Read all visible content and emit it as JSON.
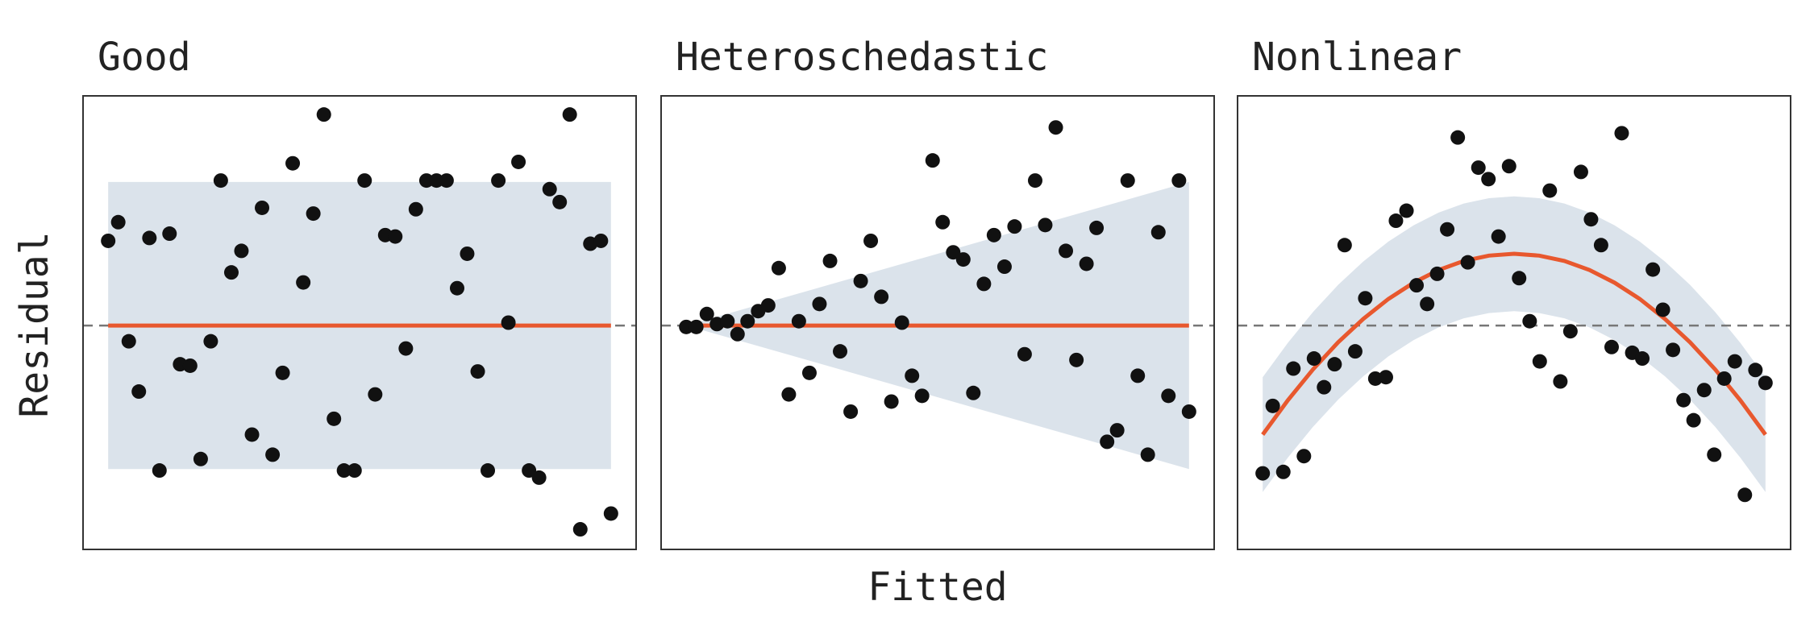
{
  "xlabel": "Fitted",
  "ylabel": "Residual",
  "chart_data": [
    {
      "type": "scatter",
      "title": "Good",
      "color": "#111111",
      "fit_color": "#e8582e",
      "band_color": "#dbe3eb",
      "xlim": [
        -0.05,
        1.05
      ],
      "ylim": [
        -1.56,
        1.6
      ],
      "hline": 0,
      "x": [
        0,
        0.02,
        0.041,
        0.061,
        0.082,
        0.102,
        0.122,
        0.143,
        0.163,
        0.184,
        0.204,
        0.224,
        0.245,
        0.265,
        0.286,
        0.306,
        0.327,
        0.347,
        0.367,
        0.388,
        0.408,
        0.429,
        0.449,
        0.469,
        0.49,
        0.51,
        0.531,
        0.551,
        0.571,
        0.592,
        0.612,
        0.633,
        0.653,
        0.673,
        0.694,
        0.714,
        0.735,
        0.755,
        0.776,
        0.796,
        0.816,
        0.837,
        0.857,
        0.878,
        0.898,
        0.918,
        0.939,
        0.959,
        0.98,
        1
      ],
      "values": [
        0.59,
        0.72,
        -0.11,
        -0.46,
        0.61,
        -1.01,
        0.64,
        -0.27,
        -0.28,
        -0.93,
        -0.11,
        1.01,
        0.37,
        0.52,
        -0.76,
        0.82,
        -0.9,
        -0.33,
        1.13,
        0.3,
        0.78,
        1.47,
        -0.65,
        -1.01,
        -1.01,
        1.01,
        -0.48,
        0.63,
        0.62,
        -0.16,
        0.81,
        1.01,
        1.01,
        1.01,
        0.26,
        0.5,
        -0.32,
        -1.01,
        1.01,
        0.02,
        1.14,
        -1.01,
        -1.06,
        0.95,
        0.86,
        1.47,
        -1.42,
        0.57,
        0.59,
        -1.31
      ],
      "fit": {
        "x": [
          0,
          1
        ],
        "values": [
          0,
          0
        ]
      },
      "band": {
        "x": [
          0,
          1
        ],
        "upper": [
          1,
          1
        ],
        "lower": [
          -1,
          -1
        ]
      }
    },
    {
      "type": "scatter",
      "title": "Heteroschedastic",
      "color": "#111111",
      "fit_color": "#e8582e",
      "band_color": "#dbe3eb",
      "xlim": [
        -0.05,
        1.05
      ],
      "ylim": [
        -1.56,
        1.6
      ],
      "hline": 0,
      "x": [
        0,
        0.02,
        0.041,
        0.061,
        0.082,
        0.102,
        0.122,
        0.143,
        0.163,
        0.184,
        0.204,
        0.224,
        0.245,
        0.265,
        0.286,
        0.306,
        0.327,
        0.347,
        0.367,
        0.388,
        0.408,
        0.429,
        0.449,
        0.469,
        0.49,
        0.51,
        0.531,
        0.551,
        0.571,
        0.592,
        0.612,
        0.633,
        0.653,
        0.673,
        0.694,
        0.714,
        0.735,
        0.755,
        0.776,
        0.796,
        0.816,
        0.837,
        0.857,
        0.878,
        0.898,
        0.918,
        0.939,
        0.959,
        0.98,
        1
      ],
      "values": [
        -0.01,
        -0.01,
        0.08,
        0.01,
        0.03,
        -0.06,
        0.03,
        0.1,
        0.14,
        0.4,
        -0.48,
        0.03,
        -0.33,
        0.15,
        0.45,
        -0.18,
        -0.6,
        0.31,
        0.59,
        0.2,
        -0.53,
        0.02,
        -0.35,
        -0.49,
        1.15,
        0.72,
        0.51,
        0.46,
        -0.47,
        0.29,
        0.63,
        0.41,
        0.69,
        -0.2,
        1.01,
        0.7,
        1.38,
        0.52,
        -0.24,
        0.43,
        0.68,
        -0.81,
        -0.73,
        1.01,
        -0.35,
        -0.9,
        0.65,
        -0.49,
        1.01,
        -0.6
      ],
      "fit": {
        "x": [
          0,
          1
        ],
        "values": [
          0,
          0
        ]
      },
      "band": {
        "x": [
          0,
          1
        ],
        "upper": [
          0,
          1
        ],
        "lower": [
          0,
          -1
        ]
      }
    },
    {
      "type": "scatter",
      "title": "Nonlinear",
      "color": "#111111",
      "fit_color": "#e8582e",
      "band_color": "#dbe3eb",
      "xlim": [
        -0.05,
        1.05
      ],
      "ylim": [
        -1.56,
        1.6
      ],
      "hline": 0,
      "x": [
        0,
        0.02,
        0.041,
        0.061,
        0.082,
        0.102,
        0.122,
        0.143,
        0.163,
        0.184,
        0.204,
        0.224,
        0.245,
        0.265,
        0.286,
        0.306,
        0.327,
        0.347,
        0.367,
        0.388,
        0.408,
        0.429,
        0.449,
        0.469,
        0.49,
        0.51,
        0.531,
        0.551,
        0.571,
        0.592,
        0.612,
        0.633,
        0.653,
        0.673,
        0.694,
        0.714,
        0.735,
        0.755,
        0.776,
        0.796,
        0.816,
        0.837,
        0.857,
        0.878,
        0.898,
        0.918,
        0.939,
        0.959,
        0.98,
        1
      ],
      "values": [
        -1.03,
        -0.56,
        -1.02,
        -0.3,
        -0.91,
        -0.23,
        -0.43,
        -0.27,
        0.56,
        -0.18,
        0.19,
        -0.37,
        -0.36,
        0.73,
        0.8,
        0.28,
        0.15,
        0.36,
        0.67,
        1.31,
        0.44,
        1.1,
        1.02,
        0.62,
        1.11,
        0.33,
        0.03,
        -0.25,
        0.94,
        -0.39,
        -0.04,
        1.07,
        0.74,
        0.56,
        -0.15,
        1.34,
        -0.19,
        -0.23,
        0.39,
        0.11,
        -0.17,
        -0.52,
        -0.66,
        -0.45,
        -0.9,
        -0.37,
        -0.25,
        -1.18,
        -0.31,
        -0.4
      ],
      "fit": {
        "x": [
          0,
          0.05,
          0.1,
          0.15,
          0.2,
          0.25,
          0.3,
          0.35,
          0.4,
          0.45,
          0.5,
          0.55,
          0.6,
          0.65,
          0.7,
          0.75,
          0.8,
          0.85,
          0.9,
          0.95,
          1
        ],
        "values": [
          -0.76,
          -0.521,
          -0.306,
          -0.117,
          0.046,
          0.185,
          0.298,
          0.387,
          0.45,
          0.487,
          0.5,
          0.487,
          0.45,
          0.387,
          0.298,
          0.185,
          0.046,
          -0.117,
          -0.306,
          -0.521,
          -0.76
        ]
      },
      "band": {
        "x": [
          0,
          0.05,
          0.1,
          0.15,
          0.2,
          0.25,
          0.3,
          0.35,
          0.4,
          0.45,
          0.5,
          0.55,
          0.6,
          0.65,
          0.7,
          0.75,
          0.8,
          0.85,
          0.9,
          0.95,
          1
        ],
        "upper": [
          -0.36,
          -0.121,
          0.094,
          0.283,
          0.446,
          0.585,
          0.698,
          0.787,
          0.85,
          0.887,
          0.9,
          0.887,
          0.85,
          0.787,
          0.698,
          0.585,
          0.446,
          0.283,
          0.094,
          -0.121,
          -0.36
        ],
        "lower": [
          -1.16,
          -0.921,
          -0.706,
          -0.517,
          -0.354,
          -0.215,
          -0.102,
          -0.013,
          0.05,
          0.087,
          0.1,
          0.087,
          0.05,
          -0.013,
          -0.102,
          -0.215,
          -0.354,
          -0.517,
          -0.706,
          -0.921,
          -1.16
        ]
      }
    }
  ]
}
